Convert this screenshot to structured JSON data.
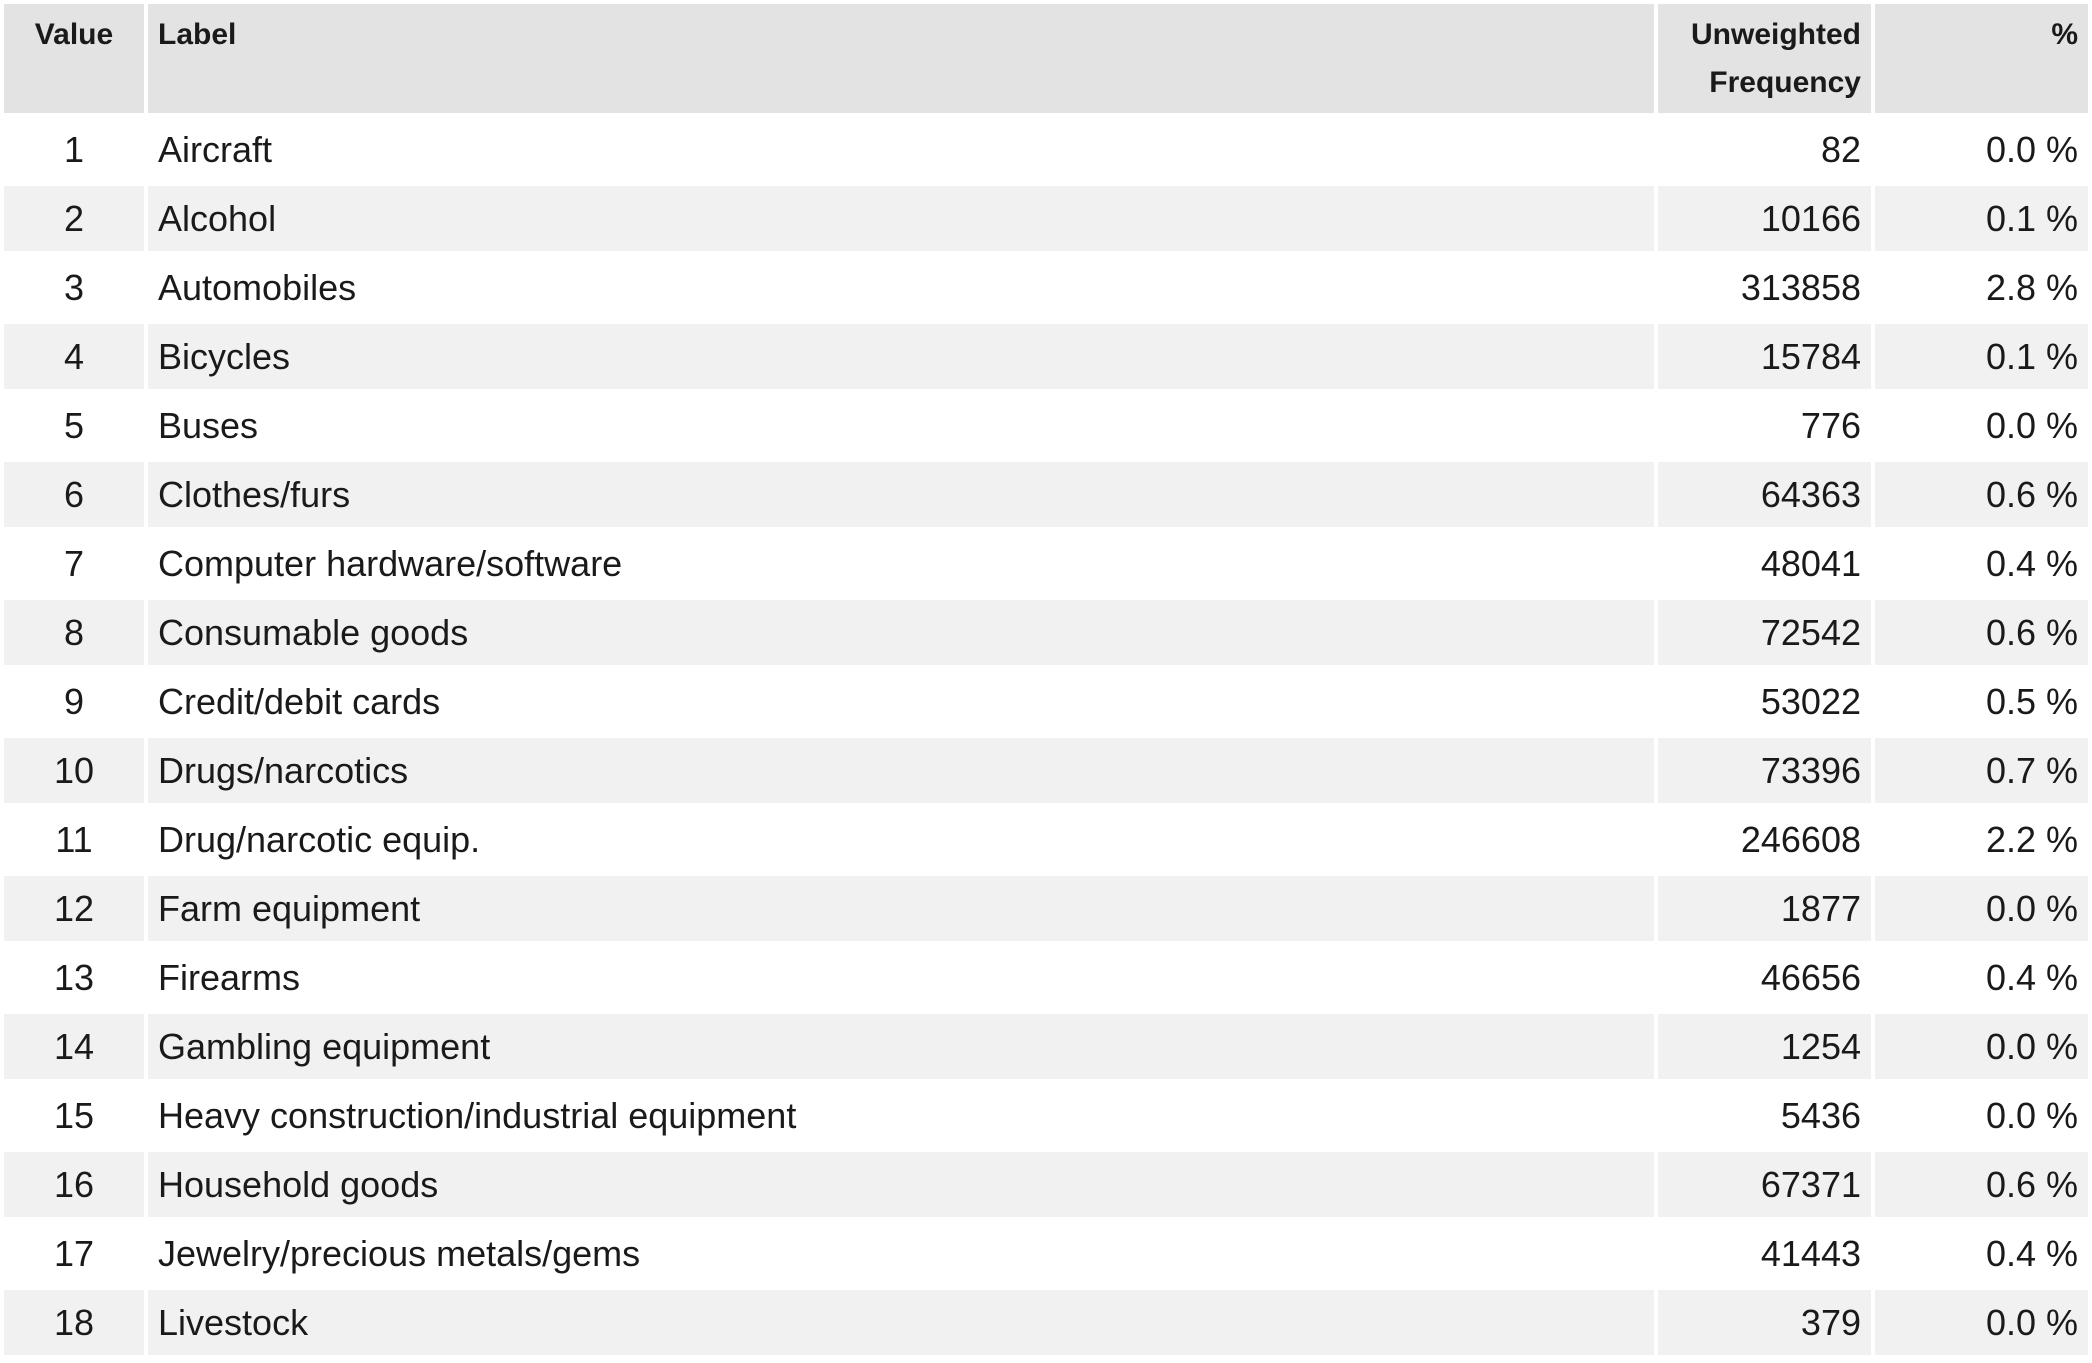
{
  "headers": {
    "value": "Value",
    "label": "Label",
    "freq": "Unweighted Frequency",
    "pct": "%"
  },
  "rows": [
    {
      "value": "1",
      "label": "Aircraft",
      "freq": "82",
      "pct": "0.0 %"
    },
    {
      "value": "2",
      "label": "Alcohol",
      "freq": "10166",
      "pct": "0.1 %"
    },
    {
      "value": "3",
      "label": "Automobiles",
      "freq": "313858",
      "pct": "2.8 %"
    },
    {
      "value": "4",
      "label": "Bicycles",
      "freq": "15784",
      "pct": "0.1 %"
    },
    {
      "value": "5",
      "label": "Buses",
      "freq": "776",
      "pct": "0.0 %"
    },
    {
      "value": "6",
      "label": "Clothes/furs",
      "freq": "64363",
      "pct": "0.6 %"
    },
    {
      "value": "7",
      "label": "Computer hardware/software",
      "freq": "48041",
      "pct": "0.4 %"
    },
    {
      "value": "8",
      "label": "Consumable goods",
      "freq": "72542",
      "pct": "0.6 %"
    },
    {
      "value": "9",
      "label": "Credit/debit cards",
      "freq": "53022",
      "pct": "0.5 %"
    },
    {
      "value": "10",
      "label": "Drugs/narcotics",
      "freq": "73396",
      "pct": "0.7 %"
    },
    {
      "value": "11",
      "label": "Drug/narcotic equip.",
      "freq": "246608",
      "pct": "2.2 %"
    },
    {
      "value": "12",
      "label": "Farm equipment",
      "freq": "1877",
      "pct": "0.0 %"
    },
    {
      "value": "13",
      "label": "Firearms",
      "freq": "46656",
      "pct": "0.4 %"
    },
    {
      "value": "14",
      "label": "Gambling equipment",
      "freq": "1254",
      "pct": "0.0 %"
    },
    {
      "value": "15",
      "label": "Heavy construction/industrial equipment",
      "freq": "5436",
      "pct": "0.0 %"
    },
    {
      "value": "16",
      "label": "Household goods",
      "freq": "67371",
      "pct": "0.6 %"
    },
    {
      "value": "17",
      "label": "Jewelry/precious metals/gems",
      "freq": "41443",
      "pct": "0.4 %"
    },
    {
      "value": "18",
      "label": "Livestock",
      "freq": "379",
      "pct": "0.0 %"
    }
  ]
}
